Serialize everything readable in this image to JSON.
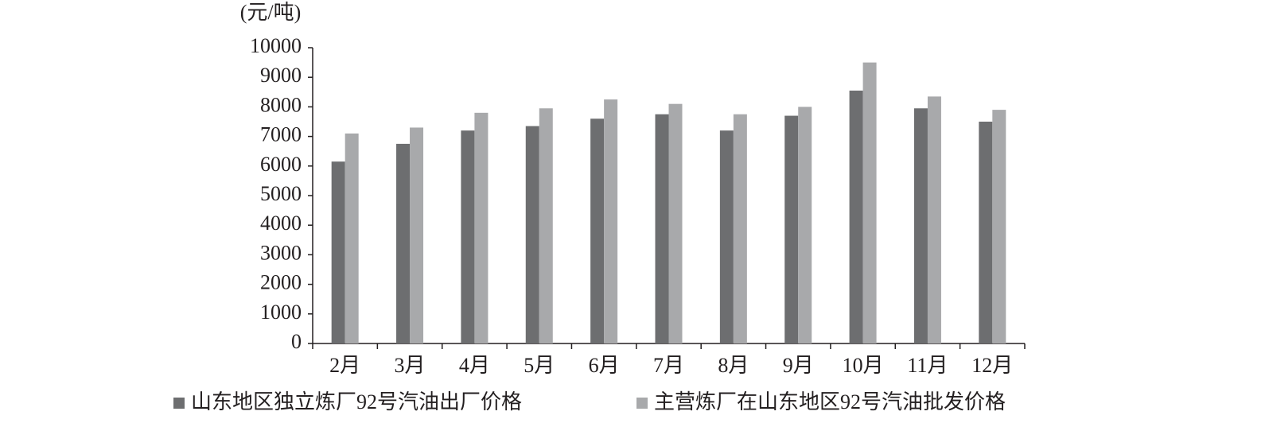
{
  "chart_data": {
    "type": "bar",
    "ylabel": "(元/吨)",
    "categories": [
      "2月",
      "3月",
      "4月",
      "5月",
      "6月",
      "7月",
      "8月",
      "9月",
      "10月",
      "11月",
      "12月"
    ],
    "series": [
      {
        "name": "山东地区独立炼厂92号汽油出厂价格",
        "color": "#6d6e70",
        "values": [
          6150,
          6750,
          7200,
          7350,
          7600,
          7750,
          7200,
          7700,
          8550,
          7950,
          7500
        ]
      },
      {
        "name": "主营炼厂在山东地区92号汽油批发价格",
        "color": "#a8a9ab",
        "values": [
          7100,
          7300,
          7800,
          7950,
          8250,
          8100,
          7750,
          8000,
          9500,
          8350,
          7900
        ]
      }
    ],
    "ylim": [
      0,
      10000
    ],
    "yticks": [
      0,
      1000,
      2000,
      3000,
      4000,
      5000,
      6000,
      7000,
      8000,
      9000,
      10000
    ],
    "grid": false
  }
}
